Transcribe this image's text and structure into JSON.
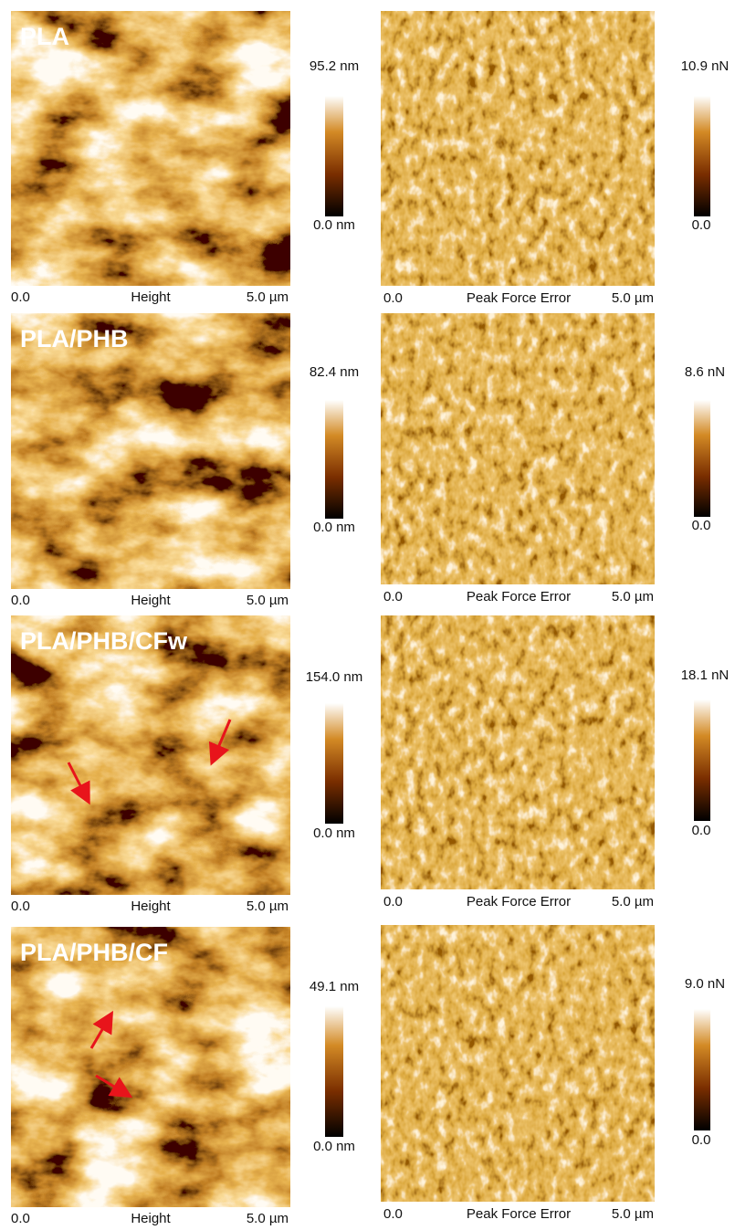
{
  "panels": [
    {
      "label": "PLA",
      "height": {
        "scale_max": "95.2 nm",
        "scale_min": "0.0 nm",
        "x_start": "0.0",
        "channel": "Height",
        "x_end": "5.0 µm"
      },
      "error": {
        "scale_max": "10.9 nN",
        "scale_min": "0.0",
        "x_start": "0.0",
        "channel": "Peak Force Error",
        "x_end": "5.0 µm"
      }
    },
    {
      "label": "PLA/PHB",
      "height": {
        "scale_max": "82.4 nm",
        "scale_min": "0.0 nm",
        "x_start": "0.0",
        "channel": "Height",
        "x_end": "5.0 µm"
      },
      "error": {
        "scale_max": "8.6 nN",
        "scale_min": "0.0",
        "x_start": "0.0",
        "channel": "Peak Force Error",
        "x_end": "5.0 µm"
      }
    },
    {
      "label": "PLA/PHB/CFw",
      "height": {
        "scale_max": "154.0 nm",
        "scale_min": "0.0 nm",
        "x_start": "0.0",
        "channel": "Height",
        "x_end": "5.0 µm"
      },
      "error": {
        "scale_max": "18.1 nN",
        "scale_min": "0.0",
        "x_start": "0.0",
        "channel": "Peak Force Error",
        "x_end": "5.0 µm"
      }
    },
    {
      "label": "PLA/PHB/CF",
      "height": {
        "scale_max": "49.1 nm",
        "scale_min": "0.0 nm",
        "x_start": "0.0",
        "channel": "Height",
        "x_end": "5.0 µm"
      },
      "error": {
        "scale_max": "9.0 nN",
        "scale_min": "0.0",
        "x_start": "0.0",
        "channel": "Peak Force Error",
        "x_end": "5.0 µm"
      }
    }
  ]
}
